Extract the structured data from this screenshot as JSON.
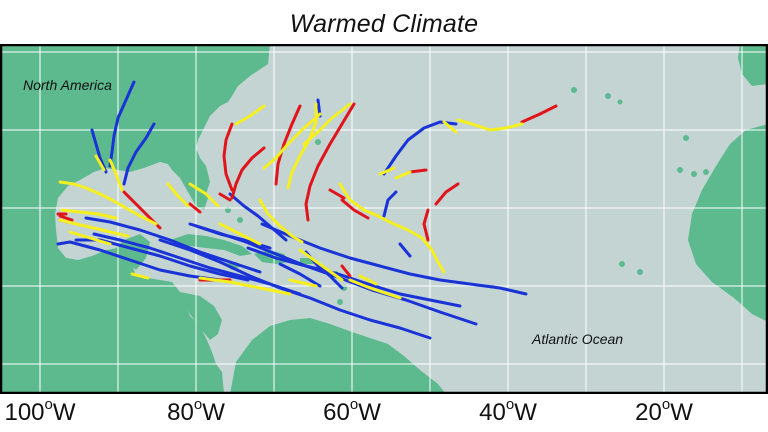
{
  "title": "Warmed Climate",
  "labels": {
    "continent": "North America",
    "ocean": "Atlantic Ocean"
  },
  "x_axis_ticks": [
    {
      "value": 100,
      "number": "100",
      "deg": "o",
      "hem": "W"
    },
    {
      "value": 80,
      "number": "80",
      "deg": "o",
      "hem": "W"
    },
    {
      "value": 60,
      "number": "60",
      "deg": "o",
      "hem": "W"
    },
    {
      "value": 40,
      "number": "40",
      "deg": "o",
      "hem": "W"
    },
    {
      "value": 20,
      "number": "20",
      "deg": "o",
      "hem": "W"
    }
  ],
  "colors": {
    "ocean": "#c3d4d3",
    "land": "#5dba8e",
    "grid": "#ffffff",
    "frame": "#000000",
    "track_blue": "#1a33d6",
    "track_red": "#e0141a",
    "track_yellow": "#f5ef20"
  },
  "legend": "none",
  "grid": true
}
